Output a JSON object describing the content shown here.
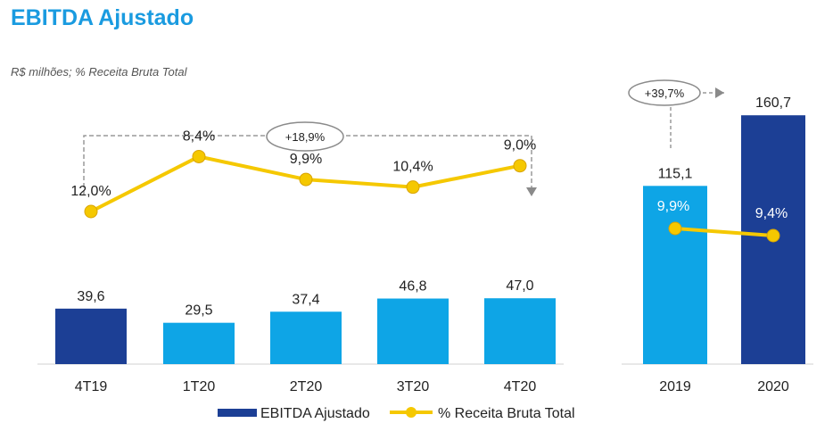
{
  "title": "EBITDA Ajustado",
  "subtitle": "R$ milhões; % Receita Bruta Total",
  "colors": {
    "dark_blue": "#1c3f95",
    "light_blue": "#0ea5e6",
    "line": "#f5c800",
    "title": "#1a9be0"
  },
  "chart_data": [
    {
      "type": "bar",
      "categories": [
        "4T19",
        "1T20",
        "2T20",
        "3T20",
        "4T20"
      ],
      "series": [
        {
          "name": "EBITDA Ajustado",
          "values": [
            39.6,
            29.5,
            37.4,
            46.8,
            47.0
          ],
          "labels": [
            "39,6",
            "29,5",
            "37,4",
            "46,8",
            "47,0"
          ]
        },
        {
          "name": "% Receita Bruta Total",
          "type": "line",
          "values": [
            12.0,
            8.4,
            9.9,
            10.4,
            9.0
          ],
          "labels": [
            "12,0%",
            "8,4%",
            "9,9%",
            "10,4%",
            "9,0%"
          ]
        }
      ],
      "bar_colors": [
        "dark",
        "light",
        "light",
        "light",
        "light"
      ],
      "annotation": {
        "text": "+18,9%",
        "from": "4T19",
        "to": "4T20"
      }
    },
    {
      "type": "bar",
      "categories": [
        "2019",
        "2020"
      ],
      "series": [
        {
          "name": "EBITDA Ajustado",
          "values": [
            115.1,
            160.7
          ],
          "labels": [
            "115,1",
            "160,7"
          ]
        },
        {
          "name": "% Receita Bruta Total",
          "type": "line",
          "values": [
            9.9,
            9.4
          ],
          "labels": [
            "9,9%",
            "9,4%"
          ]
        }
      ],
      "bar_colors": [
        "light",
        "dark"
      ],
      "annotation": {
        "text": "+39,7%",
        "from": "2019",
        "to": "2020"
      }
    }
  ],
  "legend": {
    "items": [
      "EBITDA Ajustado",
      "% Receita Bruta Total"
    ]
  }
}
